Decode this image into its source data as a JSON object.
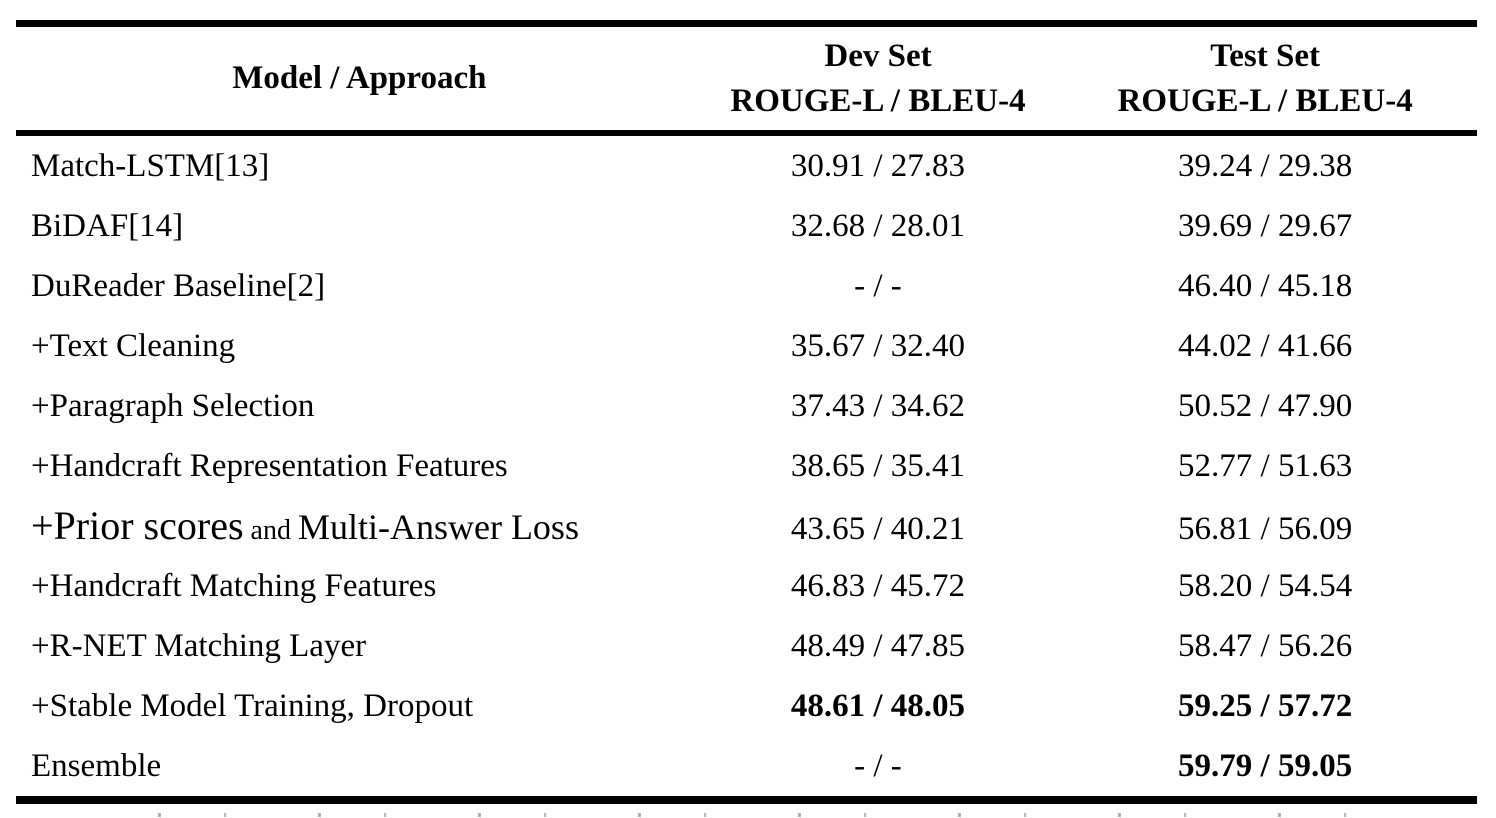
{
  "table": {
    "header": {
      "model": "Model / Approach",
      "dev_line1": "Dev Set",
      "dev_line2": "ROUGE-L / BLEU-4",
      "test_line1": "Test Set",
      "test_line2": "ROUGE-L / BLEU-4"
    },
    "rows": [
      {
        "model": "Match-LSTM[13]",
        "dev": "30.91 / 27.83",
        "test": "39.24 / 29.38",
        "dev_bold": false,
        "test_bold": false
      },
      {
        "model": "BiDAF[14]",
        "dev": "32.68 / 28.01",
        "test": "39.69 / 29.67",
        "dev_bold": false,
        "test_bold": false
      },
      {
        "model": "DuReader Baseline[2]",
        "dev": "- / -",
        "test": "46.40 / 45.18",
        "dev_bold": false,
        "test_bold": false
      },
      {
        "model": "+Text Cleaning",
        "dev": "35.67 / 32.40",
        "test": "44.02 / 41.66",
        "dev_bold": false,
        "test_bold": false
      },
      {
        "model": "+Paragraph Selection",
        "dev": "37.43 / 34.62",
        "test": "50.52 / 47.90",
        "dev_bold": false,
        "test_bold": false
      },
      {
        "model": "+Handcraft Representation Features",
        "dev": "38.65 / 35.41",
        "test": "52.77 / 51.63",
        "dev_bold": false,
        "test_bold": false
      },
      {
        "model": "+Prior scores and Multi-Answer Loss",
        "model_segments": [
          {
            "text": "+Prior scores",
            "size": "large"
          },
          {
            "text": " and ",
            "size": "small"
          },
          {
            "text": "Multi-Answer Loss",
            "size": "mid"
          }
        ],
        "dev": "43.65 / 40.21",
        "test": "56.81 / 56.09",
        "dev_bold": false,
        "test_bold": false
      },
      {
        "model": "+Handcraft Matching Features",
        "dev": "46.83 / 45.72",
        "test": "58.20 / 54.54",
        "dev_bold": false,
        "test_bold": false
      },
      {
        "model": "+R-NET Matching Layer",
        "dev": "48.49 / 47.85",
        "test": "58.47 / 56.26",
        "dev_bold": false,
        "test_bold": false
      },
      {
        "model": "+Stable Model Training, Dropout",
        "dev": "48.61 / 48.05",
        "test": "59.25 / 57.72",
        "dev_bold": true,
        "test_bold": true
      },
      {
        "model": "Ensemble",
        "dev": "- / -",
        "test": "59.79 / 59.05",
        "dev_bold": false,
        "test_bold": true
      }
    ]
  },
  "chart_data": {
    "type": "table",
    "title": "Model / Approach results on Dev and Test sets (ROUGE-L / BLEU-4)",
    "columns": [
      "Model / Approach",
      "Dev Set ROUGE-L / BLEU-4",
      "Test Set ROUGE-L / BLEU-4"
    ],
    "rows": [
      [
        "Match-LSTM[13]",
        "30.91 / 27.83",
        "39.24 / 29.38"
      ],
      [
        "BiDAF[14]",
        "32.68 / 28.01",
        "39.69 / 29.67"
      ],
      [
        "DuReader Baseline[2]",
        "- / -",
        "46.40 / 45.18"
      ],
      [
        "+Text Cleaning",
        "35.67 / 32.40",
        "44.02 / 41.66"
      ],
      [
        "+Paragraph Selection",
        "37.43 / 34.62",
        "50.52 / 47.90"
      ],
      [
        "+Handcraft Representation Features",
        "38.65 / 35.41",
        "52.77 / 51.63"
      ],
      [
        "+Prior scores and Multi-Answer Loss",
        "43.65 / 40.21",
        "56.81 / 56.09"
      ],
      [
        "+Handcraft Matching Features",
        "46.83 / 45.72",
        "58.20 / 54.54"
      ],
      [
        "+R-NET Matching Layer",
        "48.49 / 47.85",
        "58.47 / 56.26"
      ],
      [
        "+Stable Model Training, Dropout",
        "48.61 / 48.05",
        "59.25 / 57.72"
      ],
      [
        "Ensemble",
        "- / -",
        "59.79 / 59.05"
      ]
    ],
    "bold_cells": [
      [
        9,
        1
      ],
      [
        9,
        2
      ],
      [
        10,
        2
      ]
    ]
  }
}
